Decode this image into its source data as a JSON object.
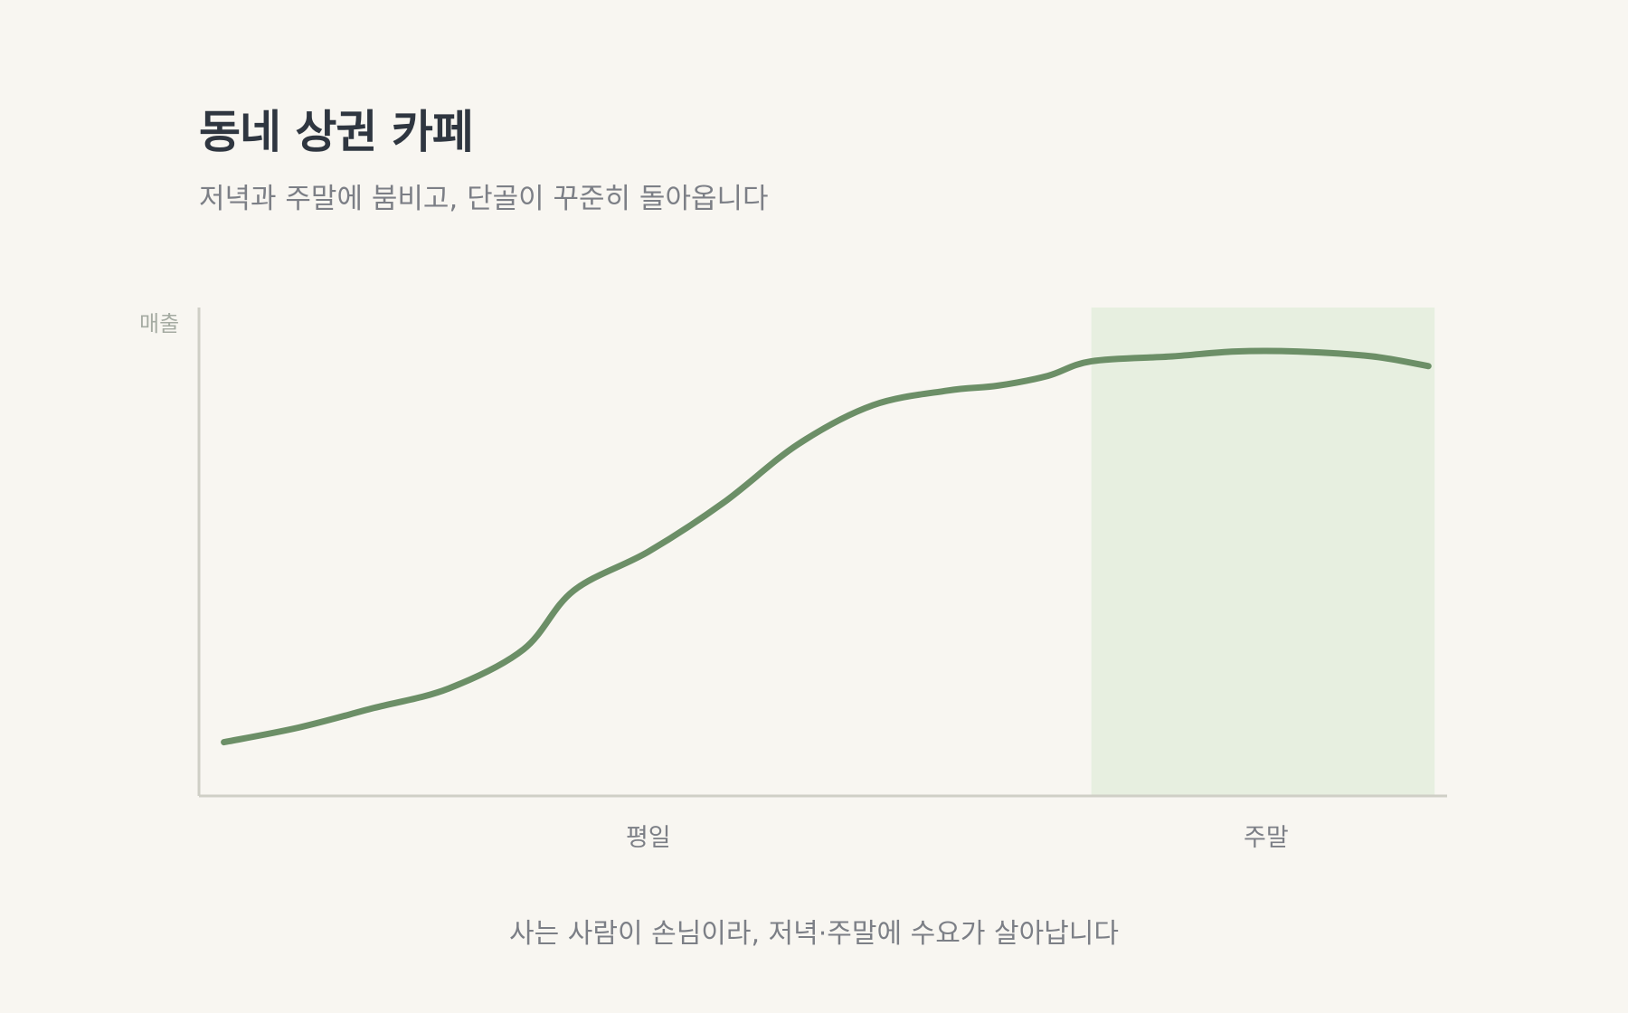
{
  "header": {
    "title": "동네 상권 카페",
    "subtitle": "저녁과 주말에 붐비고, 단골이 꾸준히 돌아옵니다"
  },
  "footnote": "사는 사람이 손님이라, 저녁·주말에 수요가 살아납니다",
  "colors": {
    "line": "#6c8f67",
    "weekend_band": "#e7efe0",
    "axis": "#cfcfc6",
    "background": "#f8f6f1"
  },
  "chart_data": {
    "type": "line",
    "title": "",
    "ylabel": "매출",
    "xlabel": "",
    "x_range": [
      0,
      1
    ],
    "y_range": [
      0,
      1
    ],
    "grid": false,
    "x_tick_labels": [
      {
        "label": "평일",
        "x": 0.36
      },
      {
        "label": "주말",
        "x": 0.855
      }
    ],
    "highlight_band": {
      "label": "주말",
      "x_start": 0.715,
      "x_end": 0.99
    },
    "series": [
      {
        "x": [
          0.02,
          0.08,
          0.14,
          0.2,
          0.26,
          0.3,
          0.36,
          0.42,
          0.48,
          0.54,
          0.6,
          0.64,
          0.68,
          0.715,
          0.78,
          0.83,
          0.88,
          0.94,
          0.985
        ],
        "values": [
          0.11,
          0.14,
          0.18,
          0.22,
          0.3,
          0.42,
          0.5,
          0.6,
          0.72,
          0.8,
          0.83,
          0.84,
          0.86,
          0.89,
          0.9,
          0.91,
          0.91,
          0.9,
          0.88
        ]
      }
    ]
  }
}
